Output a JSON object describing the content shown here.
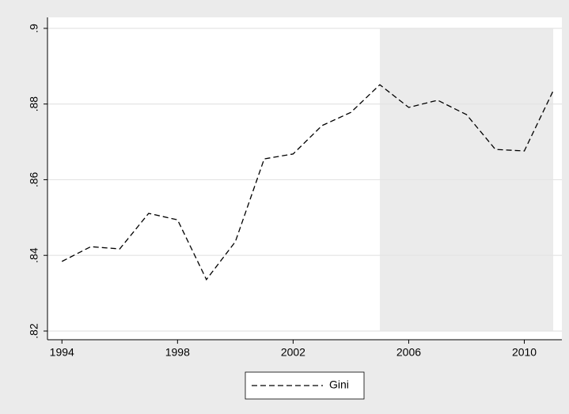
{
  "chart_data": {
    "type": "line",
    "x": [
      1994,
      1995,
      1996,
      1997,
      1998,
      1999,
      2000,
      2001,
      2002,
      2003,
      2004,
      2005,
      2006,
      2007,
      2008,
      2009,
      2010,
      2011
    ],
    "series": [
      {
        "name": "Gini",
        "color": "#000000",
        "dash": "dashed",
        "values": [
          0.8384,
          0.8423,
          0.8417,
          0.8511,
          0.8494,
          0.8336,
          0.8436,
          0.8655,
          0.8668,
          0.8743,
          0.8778,
          0.8851,
          0.8791,
          0.881,
          0.8772,
          0.868,
          0.8676,
          0.8835
        ]
      }
    ],
    "xlim": [
      1993.5,
      2011.3
    ],
    "xticks": [
      1994,
      1998,
      2002,
      2006,
      2010
    ],
    "ylim": [
      0.8177,
      0.9029
    ],
    "yticks": [
      {
        "value": 0.82,
        "label": ".82"
      },
      {
        "value": 0.84,
        "label": ".84"
      },
      {
        "value": 0.86,
        "label": ".86"
      },
      {
        "value": 0.88,
        "label": ".88"
      },
      {
        "value": 0.9,
        "label": ".9"
      }
    ],
    "grid": true,
    "shade_x": [
      2005,
      2011
    ],
    "shade_color": "#ebebeb",
    "legend": "bottom"
  }
}
